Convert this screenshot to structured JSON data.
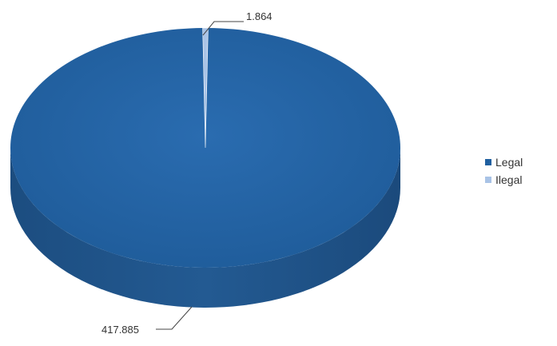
{
  "chart_data": {
    "type": "pie",
    "title": "",
    "categories": [
      "Legal",
      "Ilegal"
    ],
    "values": [
      417.885,
      1.864
    ],
    "data_labels": [
      "417.885",
      "1.864"
    ],
    "colors": [
      "#2060a0",
      "#a9c3e6"
    ],
    "legend_position": "right",
    "style": "3d"
  }
}
